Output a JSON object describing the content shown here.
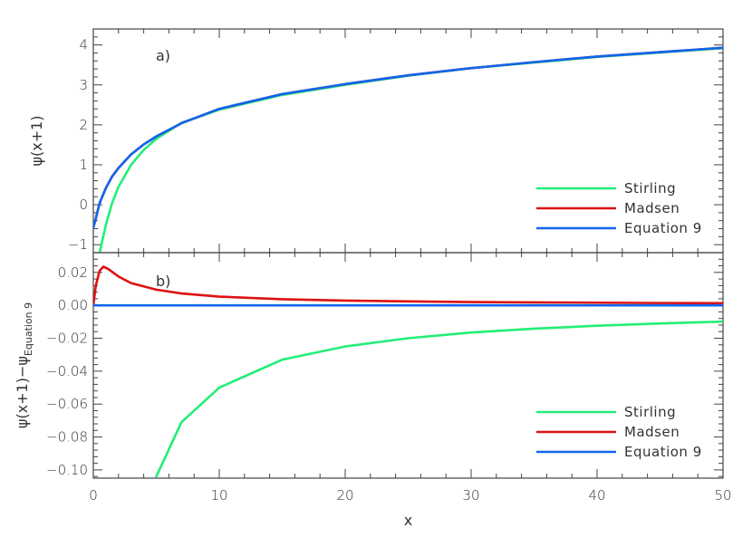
{
  "chart_data": [
    {
      "type": "line",
      "panel_label": "a)",
      "xlabel": "",
      "ylabel": "ψ(x+1)",
      "xlim": [
        0,
        50
      ],
      "ylim": [
        -1.2,
        4.4
      ],
      "xticks": [
        "0",
        "10",
        "20",
        "30",
        "40",
        "50"
      ],
      "yticks": [
        "−1",
        "0",
        "1",
        "2",
        "3",
        "4"
      ],
      "ytick_values": [
        -1,
        0,
        1,
        2,
        3,
        4
      ],
      "grid": false,
      "legend_position": "bottom-right",
      "x": [
        0,
        0.2,
        0.5,
        1,
        1.5,
        2,
        3,
        4,
        5,
        7,
        10,
        15,
        20,
        25,
        30,
        35,
        40,
        45,
        50
      ],
      "series": [
        {
          "name": "Stirling",
          "color": "#22ee77",
          "values": [
            null,
            null,
            -1.2,
            -0.5,
            0.05,
            0.45,
            1.0,
            1.37,
            1.65,
            2.05,
            2.38,
            2.75,
            3.0,
            3.23,
            3.42,
            3.56,
            3.7,
            3.81,
            3.92
          ]
        },
        {
          "name": "Madsen",
          "color": "#dd1111",
          "values": [
            -0.577,
            -0.34,
            0.04,
            0.42,
            0.71,
            0.92,
            1.26,
            1.51,
            1.71,
            2.04,
            2.4,
            2.77,
            3.02,
            3.24,
            3.42,
            3.57,
            3.71,
            3.82,
            3.93
          ]
        },
        {
          "name": "Equation 9",
          "color": "#1166ee",
          "values": [
            -0.577,
            -0.34,
            0.04,
            0.42,
            0.71,
            0.92,
            1.26,
            1.51,
            1.71,
            2.04,
            2.4,
            2.77,
            3.02,
            3.24,
            3.42,
            3.57,
            3.71,
            3.82,
            3.93
          ]
        }
      ]
    },
    {
      "type": "line",
      "panel_label": "b)",
      "xlabel": "x",
      "ylabel": "ψ(x+1)−ψ",
      "ylabel_subscript": "Equation 9",
      "xlim": [
        0,
        50
      ],
      "ylim": [
        -0.105,
        0.032
      ],
      "xticks": [
        "0",
        "10",
        "20",
        "30",
        "40",
        "50"
      ],
      "yticks": [
        "0.02",
        "0.00",
        "−0.02",
        "−0.04",
        "−0.06",
        "−0.08",
        "−0.10"
      ],
      "ytick_values": [
        0.02,
        0.0,
        -0.02,
        -0.04,
        -0.06,
        -0.08,
        -0.1
      ],
      "grid": false,
      "legend_position": "bottom-right",
      "x": [
        0,
        0.2,
        0.5,
        0.8,
        1.2,
        2,
        3,
        5,
        7,
        10,
        15,
        20,
        25,
        30,
        35,
        40,
        45,
        50
      ],
      "series": [
        {
          "name": "Stirling",
          "color": "#22ee77",
          "values": [
            null,
            null,
            null,
            null,
            null,
            null,
            null,
            -0.104,
            -0.071,
            -0.05,
            -0.033,
            -0.025,
            -0.02,
            -0.0165,
            -0.0142,
            -0.0124,
            -0.011,
            -0.0099
          ]
        },
        {
          "name": "Madsen",
          "color": "#dd1111",
          "values": [
            0.0,
            0.012,
            0.021,
            0.0235,
            0.022,
            0.0175,
            0.0135,
            0.0095,
            0.0072,
            0.0053,
            0.0037,
            0.0029,
            0.0024,
            0.002,
            0.0018,
            0.0016,
            0.0014,
            0.0013
          ]
        },
        {
          "name": "Equation 9",
          "color": "#1166ee",
          "values": [
            0,
            0,
            0,
            0,
            0,
            0,
            0,
            0,
            0,
            0,
            0,
            0,
            0,
            0,
            0,
            0,
            0,
            0
          ]
        }
      ]
    }
  ]
}
